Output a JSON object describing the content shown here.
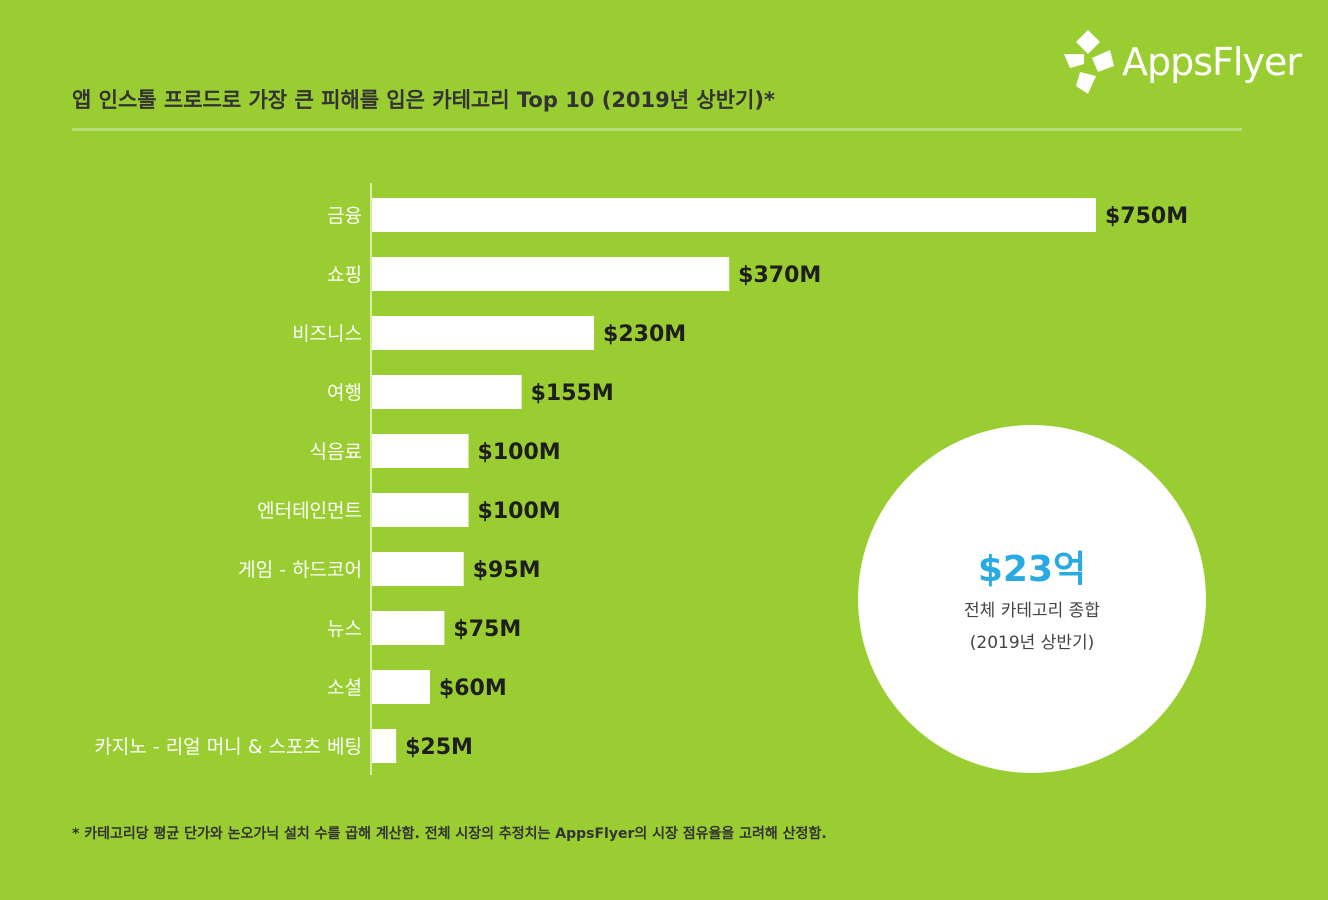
{
  "title": "앱 인스톨 프로드로 가장 큰 피해를 입은 카테고리 Top 10 (2019년 상반기)*",
  "logo": {
    "text": "AppsFlyer",
    "icon": "appsflyer-leaf-icon"
  },
  "colors": {
    "background": "#9acd32",
    "bar": "#ffffff",
    "highlight": "#29abe2",
    "text": "#333333"
  },
  "chart_data": {
    "type": "bar",
    "orientation": "horizontal",
    "categories": [
      "금융",
      "쇼핑",
      "비즈니스",
      "여행",
      "식음료",
      "엔터테인먼트",
      "게임 - 하드코어",
      "뉴스",
      "소셜",
      "카지노 - 리얼 머니 & 스포츠 베팅"
    ],
    "values": [
      750,
      370,
      230,
      155,
      100,
      100,
      95,
      75,
      60,
      25
    ],
    "value_labels": [
      "$750M",
      "$370M",
      "$230M",
      "$155M",
      "$100M",
      "$100M",
      "$95M",
      "$75M",
      "$60M",
      "$25M"
    ],
    "unit": "M USD",
    "xlim": [
      0,
      750
    ]
  },
  "total": {
    "value": "$23억",
    "label": "전체 카테고리 종합",
    "period": "(2019년 상반기)"
  },
  "footnote": "* 카테고리당 평균 단가와 논오가닉 설치 수를 곱해 계산함. 전체 시장의 추정치는 AppsFlyer의 시장 점유율을 고려해 산정함."
}
